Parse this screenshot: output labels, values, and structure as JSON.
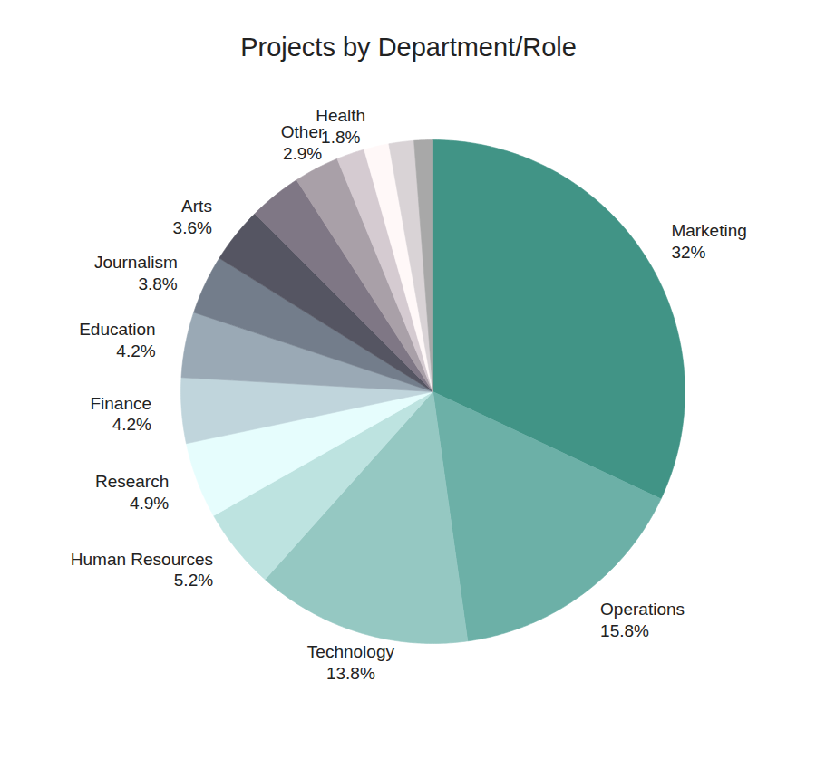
{
  "chart_data": {
    "type": "pie",
    "title": "Projects by Department/Role",
    "categories": [
      "Marketing",
      "Operations",
      "Technology",
      "Human Resources",
      "Research",
      "Finance",
      "Education",
      "Journalism",
      "Arts",
      null,
      "Other",
      "Health",
      null,
      null,
      null
    ],
    "values": [
      32,
      15.8,
      13.8,
      5.2,
      4.9,
      4.2,
      4.2,
      3.8,
      3.6,
      3.4,
      2.9,
      1.8,
      1.6,
      1.6,
      1.2
    ],
    "value_labels": [
      "32%",
      "15.8%",
      "13.8%",
      "5.2%",
      "4.9%",
      "4.2%",
      "4.2%",
      "3.8%",
      "3.6%",
      null,
      "2.9%",
      "1.8%",
      null,
      null,
      null
    ],
    "colors": [
      "#419486",
      "#6cb0a7",
      "#95c8c2",
      "#bde3e0",
      "#e6fdfd",
      "#c0d5dc",
      "#9aa9b5",
      "#737d8b",
      "#555562",
      "#7f7785",
      "#a9a0a8",
      "#d5cbd1",
      "#fff8f8",
      "#d9d3d6",
      "#a8a8a8"
    ],
    "data_labels": true
  }
}
